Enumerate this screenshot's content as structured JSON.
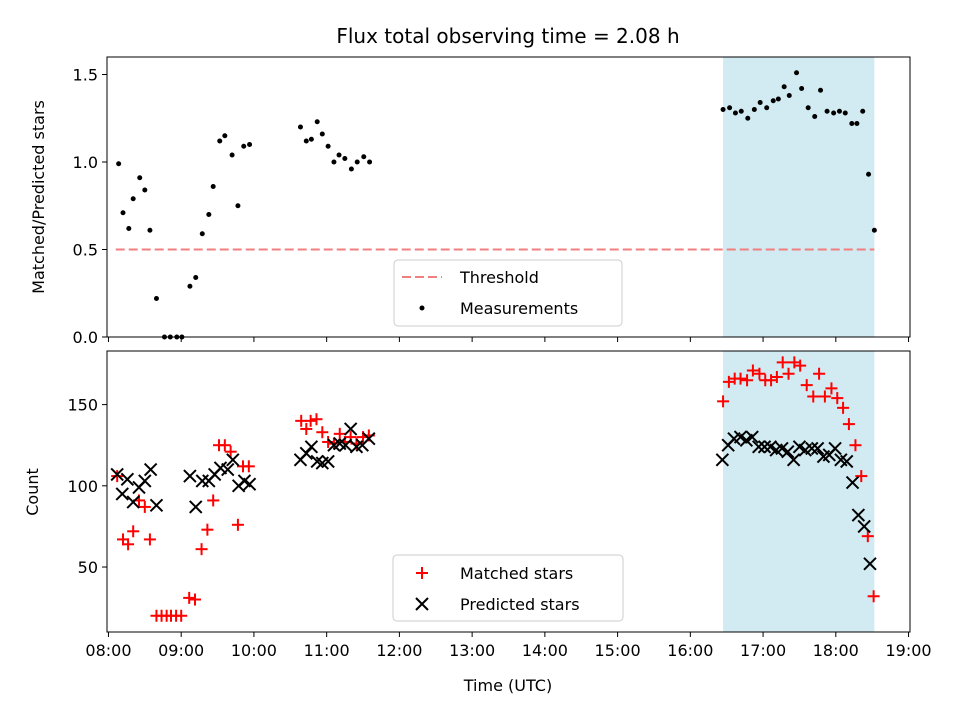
{
  "chart_data": [
    {
      "type": "scatter",
      "title": "Flux total observing time = 2.08 h",
      "ylabel": "Matched/Predicted stars",
      "xlabel": "",
      "xlim": [
        7.98,
        19.02
      ],
      "ylim": [
        0,
        1.6
      ],
      "yticks": [
        0.0,
        0.5,
        1.0,
        1.5
      ],
      "ytick_labels": [
        "0.0",
        "0.5",
        "1.0",
        "1.5"
      ],
      "shaded_span": {
        "start": 16.45,
        "end": 18.53,
        "color": "#add8e6"
      },
      "threshold": {
        "name": "Threshold",
        "value": 0.5,
        "x_start": 8.1,
        "x_end": 18.53,
        "color": "#f08080",
        "style": "dashed"
      },
      "legend": {
        "placement": "lower center",
        "entries": [
          "Threshold",
          "Measurements"
        ]
      },
      "series": [
        {
          "name": "Measurements",
          "marker": "dot",
          "color": "#000000",
          "points": [
            [
              8.14,
              0.99
            ],
            [
              8.2,
              0.71
            ],
            [
              8.28,
              0.62
            ],
            [
              8.34,
              0.79
            ],
            [
              8.43,
              0.91
            ],
            [
              8.5,
              0.84
            ],
            [
              8.57,
              0.61
            ],
            [
              8.66,
              0.22
            ],
            [
              8.77,
              0.0
            ],
            [
              8.85,
              0.0
            ],
            [
              8.94,
              0.0
            ],
            [
              9.01,
              0.0
            ],
            [
              9.12,
              0.29
            ],
            [
              9.2,
              0.34
            ],
            [
              9.29,
              0.59
            ],
            [
              9.38,
              0.7
            ],
            [
              9.44,
              0.86
            ],
            [
              9.53,
              1.12
            ],
            [
              9.6,
              1.15
            ],
            [
              9.7,
              1.04
            ],
            [
              9.78,
              0.75
            ],
            [
              9.86,
              1.09
            ],
            [
              9.94,
              1.1
            ],
            [
              10.64,
              1.2
            ],
            [
              10.72,
              1.12
            ],
            [
              10.79,
              1.13
            ],
            [
              10.87,
              1.23
            ],
            [
              10.94,
              1.16
            ],
            [
              11.02,
              1.09
            ],
            [
              11.1,
              1.0
            ],
            [
              11.17,
              1.04
            ],
            [
              11.25,
              1.02
            ],
            [
              11.34,
              0.96
            ],
            [
              11.42,
              1.0
            ],
            [
              11.51,
              1.03
            ],
            [
              11.59,
              1.0
            ],
            [
              16.45,
              1.3
            ],
            [
              16.54,
              1.31
            ],
            [
              16.62,
              1.28
            ],
            [
              16.7,
              1.29
            ],
            [
              16.79,
              1.25
            ],
            [
              16.88,
              1.3
            ],
            [
              16.96,
              1.34
            ],
            [
              17.05,
              1.31
            ],
            [
              17.14,
              1.35
            ],
            [
              17.21,
              1.36
            ],
            [
              17.29,
              1.43
            ],
            [
              17.36,
              1.38
            ],
            [
              17.46,
              1.51
            ],
            [
              17.53,
              1.42
            ],
            [
              17.62,
              1.31
            ],
            [
              17.71,
              1.26
            ],
            [
              17.79,
              1.41
            ],
            [
              17.88,
              1.29
            ],
            [
              17.97,
              1.28
            ],
            [
              18.05,
              1.29
            ],
            [
              18.13,
              1.28
            ],
            [
              18.22,
              1.22
            ],
            [
              18.29,
              1.22
            ],
            [
              18.37,
              1.29
            ],
            [
              18.45,
              0.93
            ],
            [
              18.53,
              0.61
            ]
          ]
        }
      ]
    },
    {
      "type": "scatter",
      "title": "",
      "ylabel": "Count",
      "xlabel": "Time (UTC)",
      "xlim": [
        7.98,
        19.02
      ],
      "ylim": [
        10,
        183
      ],
      "yticks": [
        50,
        100,
        150
      ],
      "ytick_labels": [
        "50",
        "100",
        "150"
      ],
      "xticks": [
        8,
        9,
        10,
        11,
        12,
        13,
        14,
        15,
        16,
        17,
        18,
        19
      ],
      "xtick_labels": [
        "08:00",
        "09:00",
        "10:00",
        "11:00",
        "12:00",
        "13:00",
        "14:00",
        "15:00",
        "16:00",
        "17:00",
        "18:00",
        "19:00"
      ],
      "shaded_span": {
        "start": 16.45,
        "end": 18.53,
        "color": "#add8e6"
      },
      "legend": {
        "placement": "lower center",
        "entries": [
          "Matched stars",
          "Predicted stars"
        ]
      },
      "series": [
        {
          "name": "Matched stars",
          "marker": "plus",
          "color": "#ff0000",
          "points": [
            [
              8.12,
              106
            ],
            [
              8.2,
              67
            ],
            [
              8.27,
              64
            ],
            [
              8.34,
              72
            ],
            [
              8.42,
              91
            ],
            [
              8.5,
              87
            ],
            [
              8.57,
              67
            ],
            [
              8.66,
              20
            ],
            [
              8.73,
              20
            ],
            [
              8.8,
              20
            ],
            [
              8.86,
              20
            ],
            [
              8.93,
              20
            ],
            [
              9.0,
              20
            ],
            [
              9.11,
              31
            ],
            [
              9.19,
              30
            ],
            [
              9.28,
              61
            ],
            [
              9.36,
              73
            ],
            [
              9.44,
              91
            ],
            [
              9.52,
              125
            ],
            [
              9.6,
              125
            ],
            [
              9.68,
              121
            ],
            [
              9.78,
              76
            ],
            [
              9.85,
              112
            ],
            [
              9.93,
              112
            ],
            [
              10.65,
              140
            ],
            [
              10.72,
              135
            ],
            [
              10.78,
              140
            ],
            [
              10.86,
              141
            ],
            [
              10.94,
              133
            ],
            [
              11.02,
              127
            ],
            [
              11.1,
              126
            ],
            [
              11.18,
              132
            ],
            [
              11.25,
              127
            ],
            [
              11.33,
              130
            ],
            [
              11.41,
              126
            ],
            [
              11.5,
              130
            ],
            [
              11.58,
              131
            ],
            [
              16.45,
              152
            ],
            [
              16.53,
              164
            ],
            [
              16.61,
              166
            ],
            [
              16.69,
              166
            ],
            [
              16.78,
              165
            ],
            [
              16.86,
              171
            ],
            [
              16.95,
              169
            ],
            [
              17.03,
              165
            ],
            [
              17.11,
              165
            ],
            [
              17.19,
              167
            ],
            [
              17.27,
              176
            ],
            [
              17.35,
              169
            ],
            [
              17.43,
              176
            ],
            [
              17.51,
              174
            ],
            [
              17.6,
              162
            ],
            [
              17.69,
              155
            ],
            [
              17.77,
              169
            ],
            [
              17.85,
              155
            ],
            [
              17.94,
              160
            ],
            [
              18.02,
              154
            ],
            [
              18.1,
              148
            ],
            [
              18.18,
              138
            ],
            [
              18.27,
              125
            ],
            [
              18.35,
              106
            ],
            [
              18.44,
              69
            ],
            [
              18.52,
              32
            ]
          ]
        },
        {
          "name": "Predicted stars",
          "marker": "x",
          "color": "#000000",
          "points": [
            [
              8.12,
              107
            ],
            [
              8.19,
              95
            ],
            [
              8.26,
              104
            ],
            [
              8.34,
              90
            ],
            [
              8.42,
              99
            ],
            [
              8.5,
              103
            ],
            [
              8.58,
              110
            ],
            [
              8.66,
              88
            ],
            [
              9.12,
              106
            ],
            [
              9.2,
              87
            ],
            [
              9.29,
              103
            ],
            [
              9.38,
              103
            ],
            [
              9.46,
              107
            ],
            [
              9.54,
              111
            ],
            [
              9.64,
              110
            ],
            [
              9.71,
              116
            ],
            [
              9.79,
              100
            ],
            [
              9.87,
              103
            ],
            [
              9.94,
              101
            ],
            [
              10.64,
              116
            ],
            [
              10.72,
              120
            ],
            [
              10.79,
              124
            ],
            [
              10.87,
              115
            ],
            [
              10.94,
              114
            ],
            [
              11.02,
              115
            ],
            [
              11.1,
              125
            ],
            [
              11.18,
              126
            ],
            [
              11.26,
              125
            ],
            [
              11.33,
              135
            ],
            [
              11.41,
              124
            ],
            [
              11.49,
              125
            ],
            [
              11.58,
              129
            ],
            [
              16.44,
              116
            ],
            [
              16.52,
              125
            ],
            [
              16.6,
              129
            ],
            [
              16.69,
              130
            ],
            [
              16.77,
              128
            ],
            [
              16.85,
              130
            ],
            [
              16.94,
              124
            ],
            [
              17.02,
              124
            ],
            [
              17.1,
              124
            ],
            [
              17.18,
              122
            ],
            [
              17.26,
              123
            ],
            [
              17.34,
              121
            ],
            [
              17.42,
              116
            ],
            [
              17.5,
              124
            ],
            [
              17.58,
              122
            ],
            [
              17.67,
              123
            ],
            [
              17.75,
              123
            ],
            [
              17.83,
              118
            ],
            [
              17.91,
              119
            ],
            [
              17.99,
              123
            ],
            [
              18.07,
              116
            ],
            [
              18.15,
              115
            ],
            [
              18.23,
              102
            ],
            [
              18.31,
              82
            ],
            [
              18.39,
              75
            ],
            [
              18.47,
              52
            ]
          ]
        }
      ]
    }
  ]
}
